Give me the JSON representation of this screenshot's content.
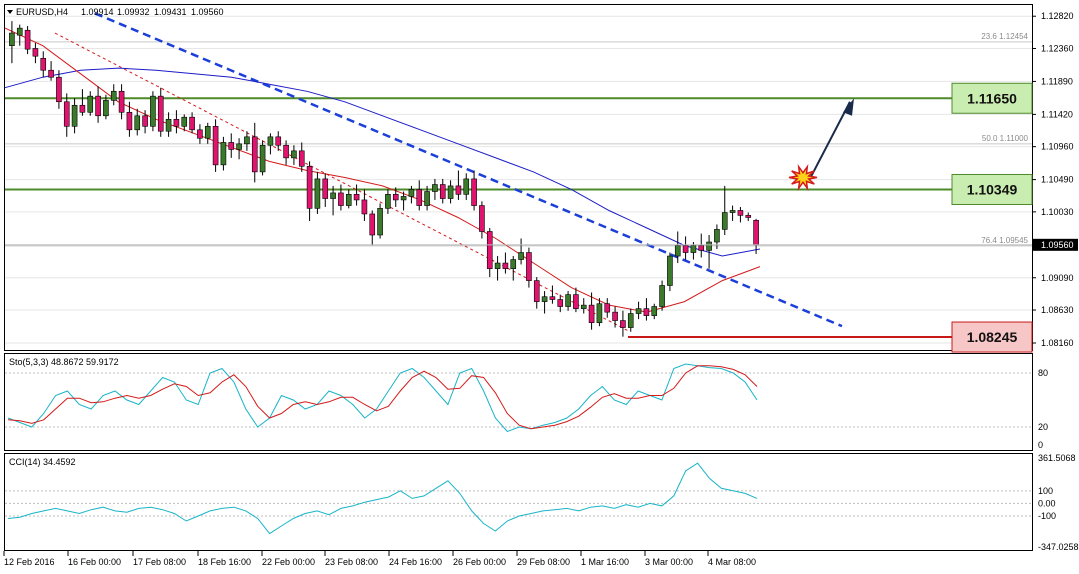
{
  "chart_data": {
    "type": "candlestick",
    "title": "EURUSD,H4",
    "ohlc_header": [
      "1.09914",
      "1.09932",
      "1.09431",
      "1.09560"
    ],
    "price_axis": {
      "ticks": [
        "1.12820",
        "1.12360",
        "1.11890",
        "1.11420",
        "1.10960",
        "1.10490",
        "1.10030",
        "1.09560",
        "1.09090",
        "1.08630",
        "1.08160"
      ],
      "current_price": "1.09560",
      "range": [
        1.0806,
        1.1298
      ]
    },
    "time_axis": [
      "12 Feb 2016",
      "16 Feb 00:00",
      "17 Feb 08:00",
      "18 Feb 16:00",
      "22 Feb 00:00",
      "23 Feb 08:00",
      "24 Feb 16:00",
      "26 Feb 00:00",
      "29 Feb 08:00",
      "1 Mar 16:00",
      "3 Mar 00:00",
      "4 Mar 08:00"
    ],
    "levels": [
      {
        "label": "1.11650",
        "value": 1.1165,
        "kind": "resistance",
        "color": "#4f8a2a",
        "fill": "#c9ecb0"
      },
      {
        "label": "1.10349",
        "value": 1.10349,
        "kind": "resistance",
        "color": "#4f8a2a",
        "fill": "#c9ecb0"
      },
      {
        "label": "1.08245",
        "value": 1.08245,
        "kind": "support",
        "color": "#c81818",
        "fill": "#f7c6c6"
      }
    ],
    "fibonacci": [
      {
        "label": "23.6 1.12454",
        "value": 1.12454
      },
      {
        "label": "50.0 1.11000",
        "value": 1.11
      },
      {
        "label": "76.4 1.09545",
        "value": 1.09545
      }
    ],
    "candles": [
      {
        "o": 1.124,
        "h": 1.1275,
        "l": 1.1215,
        "c": 1.1258
      },
      {
        "o": 1.1255,
        "h": 1.127,
        "l": 1.124,
        "c": 1.1265
      },
      {
        "o": 1.1262,
        "h": 1.1268,
        "l": 1.1228,
        "c": 1.1235
      },
      {
        "o": 1.1236,
        "h": 1.1244,
        "l": 1.1215,
        "c": 1.1225
      },
      {
        "o": 1.1222,
        "h": 1.1232,
        "l": 1.1195,
        "c": 1.1205
      },
      {
        "o": 1.1205,
        "h": 1.1218,
        "l": 1.119,
        "c": 1.1195
      },
      {
        "o": 1.1195,
        "h": 1.1205,
        "l": 1.115,
        "c": 1.116
      },
      {
        "o": 1.116,
        "h": 1.1172,
        "l": 1.111,
        "c": 1.1125
      },
      {
        "o": 1.1125,
        "h": 1.1165,
        "l": 1.1115,
        "c": 1.1155
      },
      {
        "o": 1.1155,
        "h": 1.1178,
        "l": 1.114,
        "c": 1.1145
      },
      {
        "o": 1.1145,
        "h": 1.1175,
        "l": 1.114,
        "c": 1.1168
      },
      {
        "o": 1.1168,
        "h": 1.1182,
        "l": 1.113,
        "c": 1.114
      },
      {
        "o": 1.114,
        "h": 1.117,
        "l": 1.1135,
        "c": 1.1162
      },
      {
        "o": 1.1162,
        "h": 1.1185,
        "l": 1.1155,
        "c": 1.1175
      },
      {
        "o": 1.1175,
        "h": 1.1185,
        "l": 1.1135,
        "c": 1.1145
      },
      {
        "o": 1.1145,
        "h": 1.116,
        "l": 1.111,
        "c": 1.112
      },
      {
        "o": 1.112,
        "h": 1.115,
        "l": 1.1112,
        "c": 1.114
      },
      {
        "o": 1.114,
        "h": 1.1148,
        "l": 1.1115,
        "c": 1.1125
      },
      {
        "o": 1.1125,
        "h": 1.1175,
        "l": 1.1118,
        "c": 1.1168
      },
      {
        "o": 1.1168,
        "h": 1.118,
        "l": 1.111,
        "c": 1.1118
      },
      {
        "o": 1.1118,
        "h": 1.1145,
        "l": 1.111,
        "c": 1.1135
      },
      {
        "o": 1.1135,
        "h": 1.1148,
        "l": 1.1115,
        "c": 1.1125
      },
      {
        "o": 1.1125,
        "h": 1.1142,
        "l": 1.1118,
        "c": 1.1138
      },
      {
        "o": 1.1138,
        "h": 1.1145,
        "l": 1.1115,
        "c": 1.112
      },
      {
        "o": 1.112,
        "h": 1.1128,
        "l": 1.11,
        "c": 1.1108
      },
      {
        "o": 1.1108,
        "h": 1.113,
        "l": 1.11,
        "c": 1.1125
      },
      {
        "o": 1.1125,
        "h": 1.1135,
        "l": 1.106,
        "c": 1.107
      },
      {
        "o": 1.107,
        "h": 1.111,
        "l": 1.1062,
        "c": 1.1102
      },
      {
        "o": 1.1102,
        "h": 1.1115,
        "l": 1.108,
        "c": 1.1092
      },
      {
        "o": 1.1092,
        "h": 1.1108,
        "l": 1.1078,
        "c": 1.11
      },
      {
        "o": 1.11,
        "h": 1.1118,
        "l": 1.109,
        "c": 1.111
      },
      {
        "o": 1.111,
        "h": 1.113,
        "l": 1.1045,
        "c": 1.106
      },
      {
        "o": 1.106,
        "h": 1.1105,
        "l": 1.1055,
        "c": 1.1098
      },
      {
        "o": 1.1098,
        "h": 1.1115,
        "l": 1.1085,
        "c": 1.111
      },
      {
        "o": 1.111,
        "h": 1.1118,
        "l": 1.109,
        "c": 1.1098
      },
      {
        "o": 1.1098,
        "h": 1.1105,
        "l": 1.107,
        "c": 1.108
      },
      {
        "o": 1.108,
        "h": 1.1098,
        "l": 1.107,
        "c": 1.109
      },
      {
        "o": 1.109,
        "h": 1.1102,
        "l": 1.106,
        "c": 1.1068
      },
      {
        "o": 1.1068,
        "h": 1.1075,
        "l": 1.099,
        "c": 1.1008
      },
      {
        "o": 1.1008,
        "h": 1.106,
        "l": 1.1,
        "c": 1.105
      },
      {
        "o": 1.105,
        "h": 1.1058,
        "l": 1.101,
        "c": 1.1022
      },
      {
        "o": 1.1022,
        "h": 1.104,
        "l": 1.0998,
        "c": 1.103
      },
      {
        "o": 1.103,
        "h": 1.1042,
        "l": 1.1005,
        "c": 1.1012
      },
      {
        "o": 1.1012,
        "h": 1.1035,
        "l": 1.1008,
        "c": 1.1028
      },
      {
        "o": 1.1028,
        "h": 1.1042,
        "l": 1.1012,
        "c": 1.102
      },
      {
        "o": 1.102,
        "h": 1.1035,
        "l": 1.099,
        "c": 1.1
      },
      {
        "o": 1.1,
        "h": 1.1005,
        "l": 1.0955,
        "c": 1.097
      },
      {
        "o": 1.097,
        "h": 1.1015,
        "l": 1.0965,
        "c": 1.1008
      },
      {
        "o": 1.1008,
        "h": 1.1035,
        "l": 1.1,
        "c": 1.1028
      },
      {
        "o": 1.1028,
        "h": 1.1038,
        "l": 1.101,
        "c": 1.102
      },
      {
        "o": 1.102,
        "h": 1.1032,
        "l": 1.1005,
        "c": 1.1025
      },
      {
        "o": 1.1025,
        "h": 1.104,
        "l": 1.1015,
        "c": 1.1035
      },
      {
        "o": 1.1035,
        "h": 1.1048,
        "l": 1.1005,
        "c": 1.1012
      },
      {
        "o": 1.1012,
        "h": 1.104,
        "l": 1.1005,
        "c": 1.1032
      },
      {
        "o": 1.1032,
        "h": 1.105,
        "l": 1.102,
        "c": 1.1042
      },
      {
        "o": 1.1042,
        "h": 1.105,
        "l": 1.1015,
        "c": 1.1022
      },
      {
        "o": 1.1022,
        "h": 1.1048,
        "l": 1.1015,
        "c": 1.104
      },
      {
        "o": 1.104,
        "h": 1.1062,
        "l": 1.102,
        "c": 1.1028
      },
      {
        "o": 1.1028,
        "h": 1.1058,
        "l": 1.102,
        "c": 1.105
      },
      {
        "o": 1.105,
        "h": 1.1062,
        "l": 1.1005,
        "c": 1.1012
      },
      {
        "o": 1.1012,
        "h": 1.1018,
        "l": 1.0965,
        "c": 1.0975
      },
      {
        "o": 1.0975,
        "h": 1.098,
        "l": 1.091,
        "c": 1.0922
      },
      {
        "o": 1.0922,
        "h": 1.094,
        "l": 1.0905,
        "c": 1.093
      },
      {
        "o": 1.093,
        "h": 1.0945,
        "l": 1.0915,
        "c": 1.0922
      },
      {
        "o": 1.0922,
        "h": 1.094,
        "l": 1.0905,
        "c": 1.0935
      },
      {
        "o": 1.0935,
        "h": 1.0965,
        "l": 1.0928,
        "c": 1.0945
      },
      {
        "o": 1.0945,
        "h": 1.0952,
        "l": 1.0895,
        "c": 1.0905
      },
      {
        "o": 1.0905,
        "h": 1.091,
        "l": 1.0865,
        "c": 1.0875
      },
      {
        "o": 1.0875,
        "h": 1.089,
        "l": 1.0858,
        "c": 1.0882
      },
      {
        "o": 1.0882,
        "h": 1.0898,
        "l": 1.0872,
        "c": 1.0878
      },
      {
        "o": 1.0878,
        "h": 1.0885,
        "l": 1.086,
        "c": 1.0868
      },
      {
        "o": 1.0868,
        "h": 1.089,
        "l": 1.0862,
        "c": 1.0885
      },
      {
        "o": 1.0885,
        "h": 1.0895,
        "l": 1.086,
        "c": 1.0865
      },
      {
        "o": 1.0865,
        "h": 1.088,
        "l": 1.0858,
        "c": 1.087
      },
      {
        "o": 1.087,
        "h": 1.0888,
        "l": 1.0835,
        "c": 1.0845
      },
      {
        "o": 1.0845,
        "h": 1.088,
        "l": 1.084,
        "c": 1.0872
      },
      {
        "o": 1.0872,
        "h": 1.088,
        "l": 1.0852,
        "c": 1.086
      },
      {
        "o": 1.086,
        "h": 1.0868,
        "l": 1.0838,
        "c": 1.0848
      },
      {
        "o": 1.0848,
        "h": 1.0862,
        "l": 1.0825,
        "c": 1.0838
      },
      {
        "o": 1.0838,
        "h": 1.0865,
        "l": 1.0832,
        "c": 1.0858
      },
      {
        "o": 1.0858,
        "h": 1.0875,
        "l": 1.085,
        "c": 1.0865
      },
      {
        "o": 1.0865,
        "h": 1.088,
        "l": 1.0848,
        "c": 1.0855
      },
      {
        "o": 1.0855,
        "h": 1.0872,
        "l": 1.085,
        "c": 1.0868
      },
      {
        "o": 1.0868,
        "h": 1.0905,
        "l": 1.0862,
        "c": 1.0898
      },
      {
        "o": 1.0898,
        "h": 1.0945,
        "l": 1.089,
        "c": 1.094
      },
      {
        "o": 1.094,
        "h": 1.0975,
        "l": 1.093,
        "c": 1.0955
      },
      {
        "o": 1.0955,
        "h": 1.0968,
        "l": 1.0935,
        "c": 1.0945
      },
      {
        "o": 1.0945,
        "h": 1.096,
        "l": 1.0935,
        "c": 1.0955
      },
      {
        "o": 1.0955,
        "h": 1.0972,
        "l": 1.0938,
        "c": 1.0948
      },
      {
        "o": 1.0948,
        "h": 1.097,
        "l": 1.0922,
        "c": 1.096
      },
      {
        "o": 1.096,
        "h": 1.0985,
        "l": 1.095,
        "c": 1.0978
      },
      {
        "o": 1.0978,
        "h": 1.104,
        "l": 1.097,
        "c": 1.1002
      },
      {
        "o": 1.1002,
        "h": 1.1012,
        "l": 1.099,
        "c": 1.1005
      },
      {
        "o": 1.1005,
        "h": 1.101,
        "l": 1.0988,
        "c": 1.0998
      },
      {
        "o": 1.0998,
        "h": 1.1002,
        "l": 1.099,
        "c": 1.0995
      },
      {
        "o": 1.0991,
        "h": 1.0993,
        "l": 1.0943,
        "c": 1.0956
      }
    ],
    "moving_averages": [
      {
        "color": "#1c1cc8",
        "kind": "slow",
        "values": [
          1.118,
          1.1195,
          1.1205,
          1.1208,
          1.1205,
          1.12,
          1.1195,
          1.1185,
          1.1175,
          1.116,
          1.114,
          1.112,
          1.11,
          1.108,
          1.106,
          1.1035,
          1.1005,
          1.098,
          1.0955,
          1.094,
          1.095
        ]
      },
      {
        "color": "#d41a1a",
        "kind": "fast",
        "values": [
          1.1265,
          1.124,
          1.12,
          1.116,
          1.1135,
          1.1115,
          1.1095,
          1.1075,
          1.1062,
          1.1052,
          1.104,
          1.102,
          1.0995,
          1.0965,
          1.093,
          1.0895,
          1.087,
          1.086,
          1.0875,
          1.0905,
          1.0925
        ]
      }
    ],
    "trendlines": [
      {
        "kind": "blue-dashed",
        "from": [
          0,
          1.1286
        ],
        "to": [
          1,
          1.084
        ]
      },
      {
        "kind": "red-dashed",
        "from": [
          0,
          1.1258
        ],
        "to": [
          1,
          1.0832
        ]
      }
    ],
    "stochastic": {
      "label": "Sto(5,3,3) 48.8672 59.9172",
      "ticks": [
        "80",
        "20",
        "0"
      ],
      "range": [
        0,
        100
      ],
      "main": [
        30,
        25,
        20,
        35,
        55,
        60,
        45,
        40,
        55,
        60,
        50,
        45,
        60,
        75,
        70,
        50,
        45,
        80,
        85,
        70,
        40,
        20,
        30,
        55,
        50,
        40,
        45,
        60,
        55,
        45,
        30,
        40,
        60,
        80,
        85,
        75,
        60,
        45,
        80,
        85,
        60,
        30,
        15,
        20,
        18,
        22,
        25,
        30,
        40,
        55,
        65,
        50,
        45,
        60,
        55,
        50,
        85,
        90,
        88,
        86,
        85,
        80,
        70,
        50
      ],
      "signal": [
        28,
        27,
        24,
        28,
        40,
        52,
        52,
        47,
        48,
        52,
        55,
        52,
        55,
        62,
        68,
        65,
        55,
        58,
        70,
        78,
        65,
        43,
        30,
        35,
        45,
        48,
        45,
        48,
        53,
        53,
        45,
        38,
        43,
        60,
        75,
        82,
        75,
        62,
        63,
        77,
        75,
        58,
        35,
        22,
        18,
        20,
        22,
        26,
        32,
        42,
        53,
        57,
        52,
        52,
        55,
        55,
        63,
        80,
        88,
        88,
        87,
        84,
        78,
        65
      ]
    },
    "cci": {
      "label": "CCI(14) 34.4592",
      "ticks": [
        "361.5068",
        "100",
        "0.00",
        "-100",
        "-347.0258"
      ],
      "range": [
        -347.0258,
        361.5068
      ],
      "values": [
        -120,
        -110,
        -80,
        -60,
        -40,
        -60,
        -80,
        -50,
        -30,
        -60,
        -70,
        -40,
        -30,
        -50,
        -80,
        -140,
        -100,
        -60,
        -40,
        -30,
        -60,
        -120,
        -240,
        -180,
        -120,
        -80,
        -60,
        -90,
        -40,
        -20,
        10,
        30,
        50,
        100,
        40,
        60,
        120,
        180,
        80,
        -60,
        -160,
        -220,
        -140,
        -100,
        -80,
        -60,
        -50,
        -40,
        -60,
        -30,
        -20,
        -40,
        -10,
        -30,
        0,
        -20,
        60,
        260,
        320,
        200,
        120,
        100,
        80,
        40
      ]
    },
    "annotations": [
      {
        "kind": "arrow",
        "label": "breakout-arrow",
        "from": [
          0.935,
          1.104
        ],
        "to": [
          0.99,
          1.1155
        ]
      },
      {
        "kind": "starburst",
        "label": "breakout-star"
      }
    ]
  }
}
